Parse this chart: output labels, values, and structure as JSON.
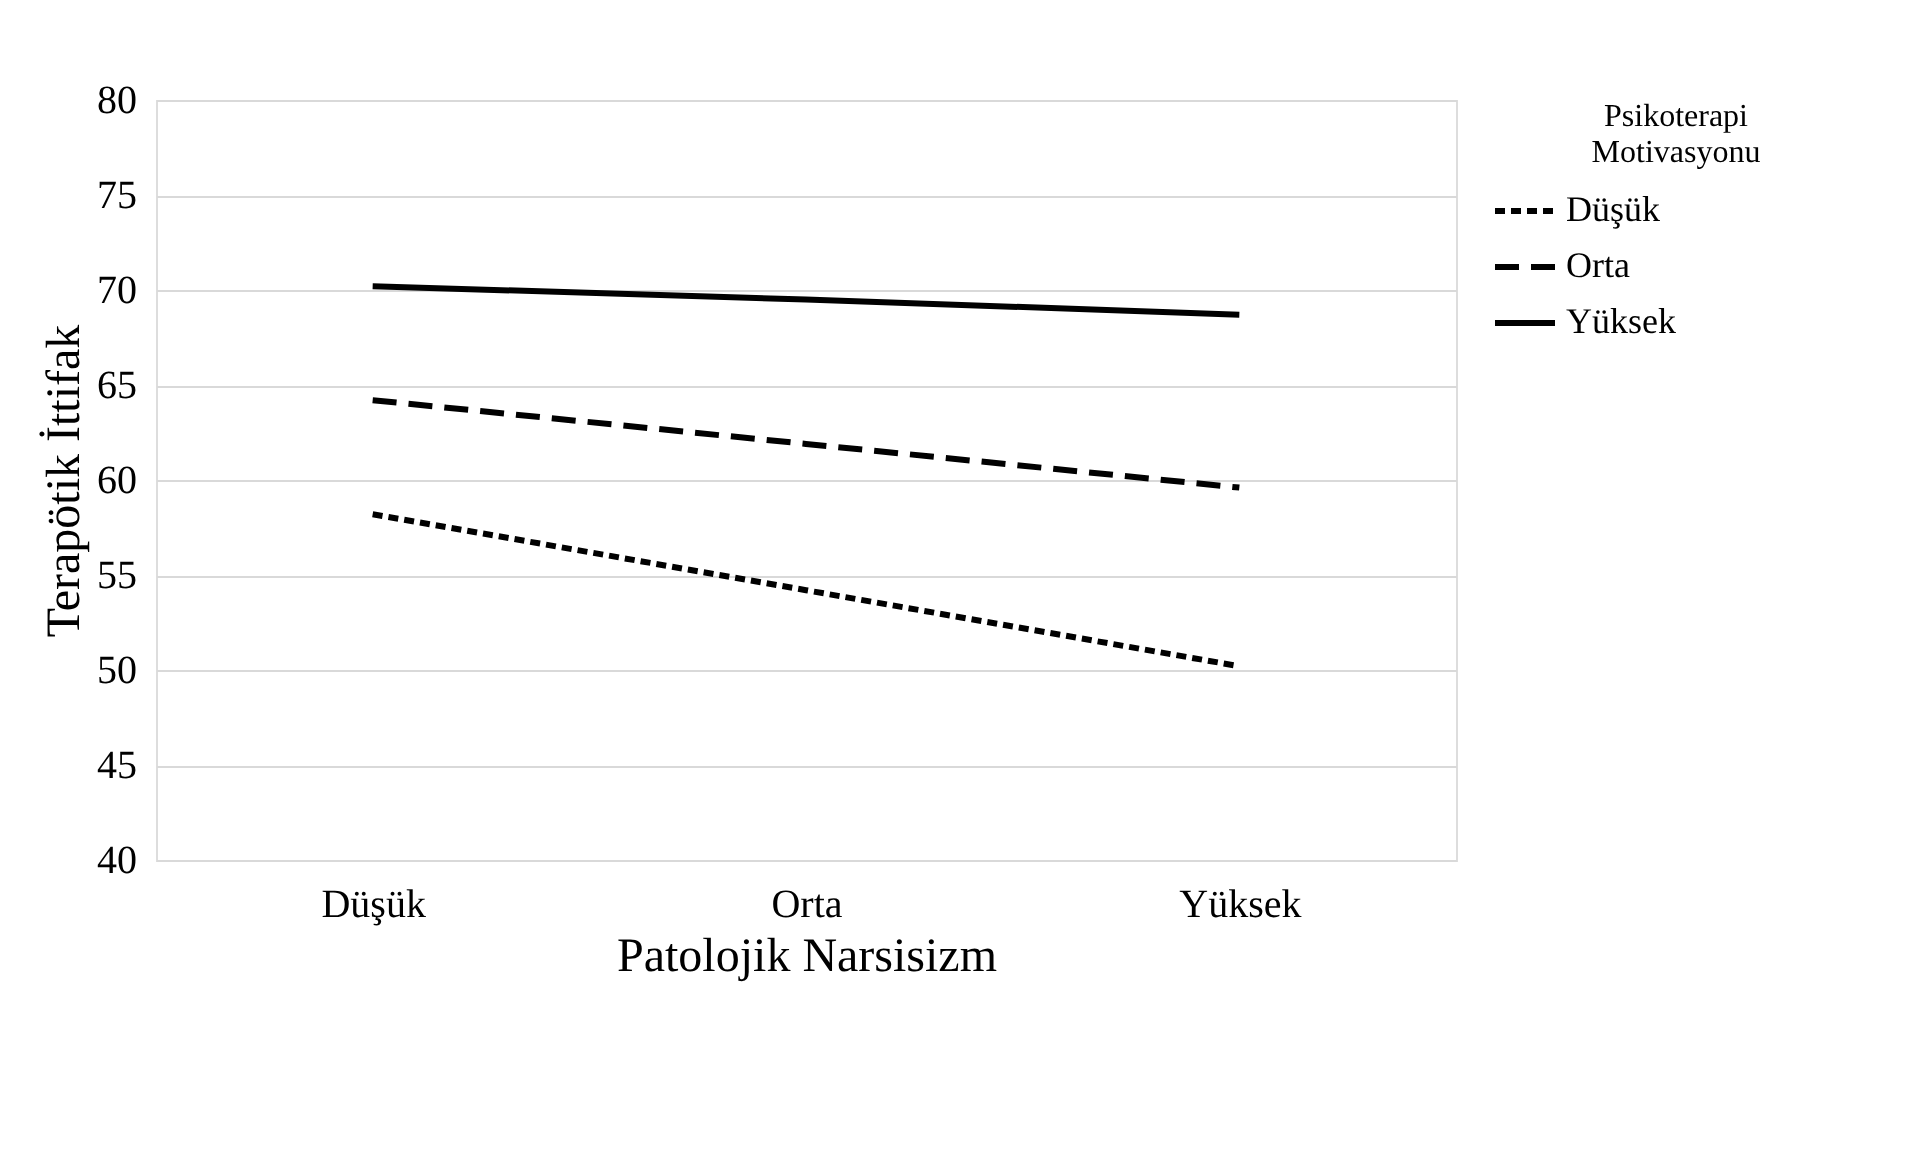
{
  "chart_data": {
    "type": "line",
    "xlabel": "Patolojik Narsisizm",
    "ylabel": "Terapötik İttifak",
    "legend_title": "Psikoterapi Motivasyonu",
    "categories": [
      "Düşük",
      "Orta",
      "Yüksek"
    ],
    "series": [
      {
        "name": "Düşük",
        "color": "#000000",
        "line_style": "dotted",
        "values": [
          58.2,
          54.2,
          50.2
        ]
      },
      {
        "name": "Orta",
        "color": "#000000",
        "line_style": "dashed",
        "values": [
          64.2,
          61.9,
          59.6
        ]
      },
      {
        "name": "Yüksek",
        "color": "#000000",
        "line_style": "solid",
        "values": [
          70.2,
          69.5,
          68.7
        ]
      }
    ],
    "ylim": [
      40,
      80
    ],
    "yticks": [
      40,
      45,
      50,
      55,
      60,
      65,
      70,
      75,
      80
    ],
    "grid": "y",
    "legend": "top right",
    "marker": "none"
  }
}
